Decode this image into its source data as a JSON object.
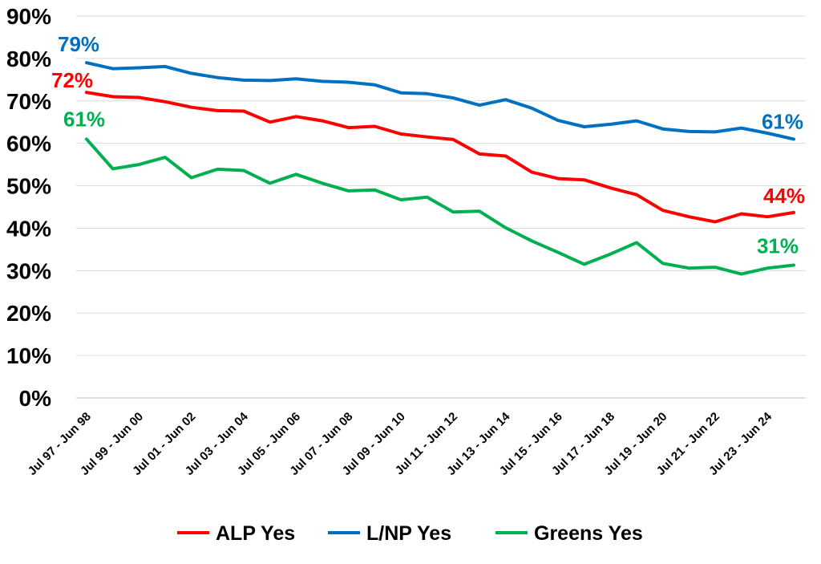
{
  "chart_data": {
    "type": "line",
    "x": [
      "Jul 97 - Jun 98",
      "Jul 98 - Jun 99",
      "Jul 99 - Jun 00",
      "Jul 00 - Jun 01",
      "Jul 01 - Jun 02",
      "Jul 02 - Jun 03",
      "Jul 03 - Jun 04",
      "Jul 04 - Jun 05",
      "Jul 05 - Jun 06",
      "Jul 06 - Jun 07",
      "Jul 07 - Jun 08",
      "Jul 08 - Jun 09",
      "Jul 09 - Jun 10",
      "Jul 10 - Jun 11",
      "Jul 11 - Jun 12",
      "Jul 12 - Jun 13",
      "Jul 13 - Jun 14",
      "Jul 14 - Jun 15",
      "Jul 15 - Jun 16",
      "Jul 16 - Jun 17",
      "Jul 17 - Jun 18",
      "Jul 18 - Jun 19",
      "Jul 19 - Jun 20",
      "Jul 20 - Jun 21",
      "Jul 21 - Jun 22",
      "Jul 22 - Jun 23",
      "Jul 23 - Jun 24",
      "Jul 24 - Jun 25"
    ],
    "x_tick_labels": [
      "Jul 97 - Jun 98",
      "Jul 99 - Jun 00",
      "Jul 01 - Jun 02",
      "Jul 03 - Jun 04",
      "Jul 05 - Jun 06",
      "Jul 07 - Jun 08",
      "Jul 09 - Jun 10",
      "Jul 11 - Jun 12",
      "Jul 13 - Jun 14",
      "Jul 15 - Jun 16",
      "Jul 17 - Jun 18",
      "Jul 19 - Jun 20",
      "Jul 21 - Jun 22",
      "Jul 23 - Jun 24"
    ],
    "series": [
      {
        "name": "ALP Yes",
        "color": "#ff0000",
        "values": [
          72,
          71,
          70.8,
          69.8,
          68.5,
          67.7,
          67.6,
          65,
          66.3,
          65.3,
          63.7,
          64,
          62.2,
          61.5,
          60.9,
          57.5,
          57,
          53.2,
          51.7,
          51.4,
          49.5,
          47.9,
          44.2,
          42.7,
          41.5,
          43.4,
          42.7,
          43.7
        ],
        "end_labels": {
          "first": "72%",
          "last": "44%"
        }
      },
      {
        "name": "L/NP Yes",
        "color": "#0070c0",
        "values": [
          79,
          77.6,
          77.8,
          78.1,
          76.5,
          75.5,
          74.9,
          74.8,
          75.2,
          74.6,
          74.4,
          73.8,
          71.9,
          71.7,
          70.7,
          69,
          70.3,
          68.3,
          65.4,
          63.9,
          64.5,
          65.3,
          63.4,
          62.8,
          62.7,
          63.6,
          62.4,
          61
        ],
        "end_labels": {
          "first": "79%",
          "last": "61%"
        }
      },
      {
        "name": "Greens Yes",
        "color": "#00b050",
        "values": [
          61,
          54,
          55,
          56.7,
          51.9,
          53.9,
          53.6,
          50.6,
          52.7,
          50.6,
          48.8,
          49,
          46.7,
          47.3,
          43.8,
          44,
          40.1,
          37,
          34.3,
          31.5,
          33.9,
          36.6,
          31.7,
          30.6,
          30.8,
          29.2,
          30.6,
          31.3
        ],
        "end_labels": {
          "first": "61%",
          "last": "31%"
        }
      }
    ],
    "y_tick_labels": [
      "0%",
      "10%",
      "20%",
      "30%",
      "40%",
      "50%",
      "60%",
      "70%",
      "80%",
      "90%"
    ],
    "ylim": [
      0,
      90
    ],
    "ystep": 10,
    "grid": true,
    "legend_position": "bottom"
  }
}
